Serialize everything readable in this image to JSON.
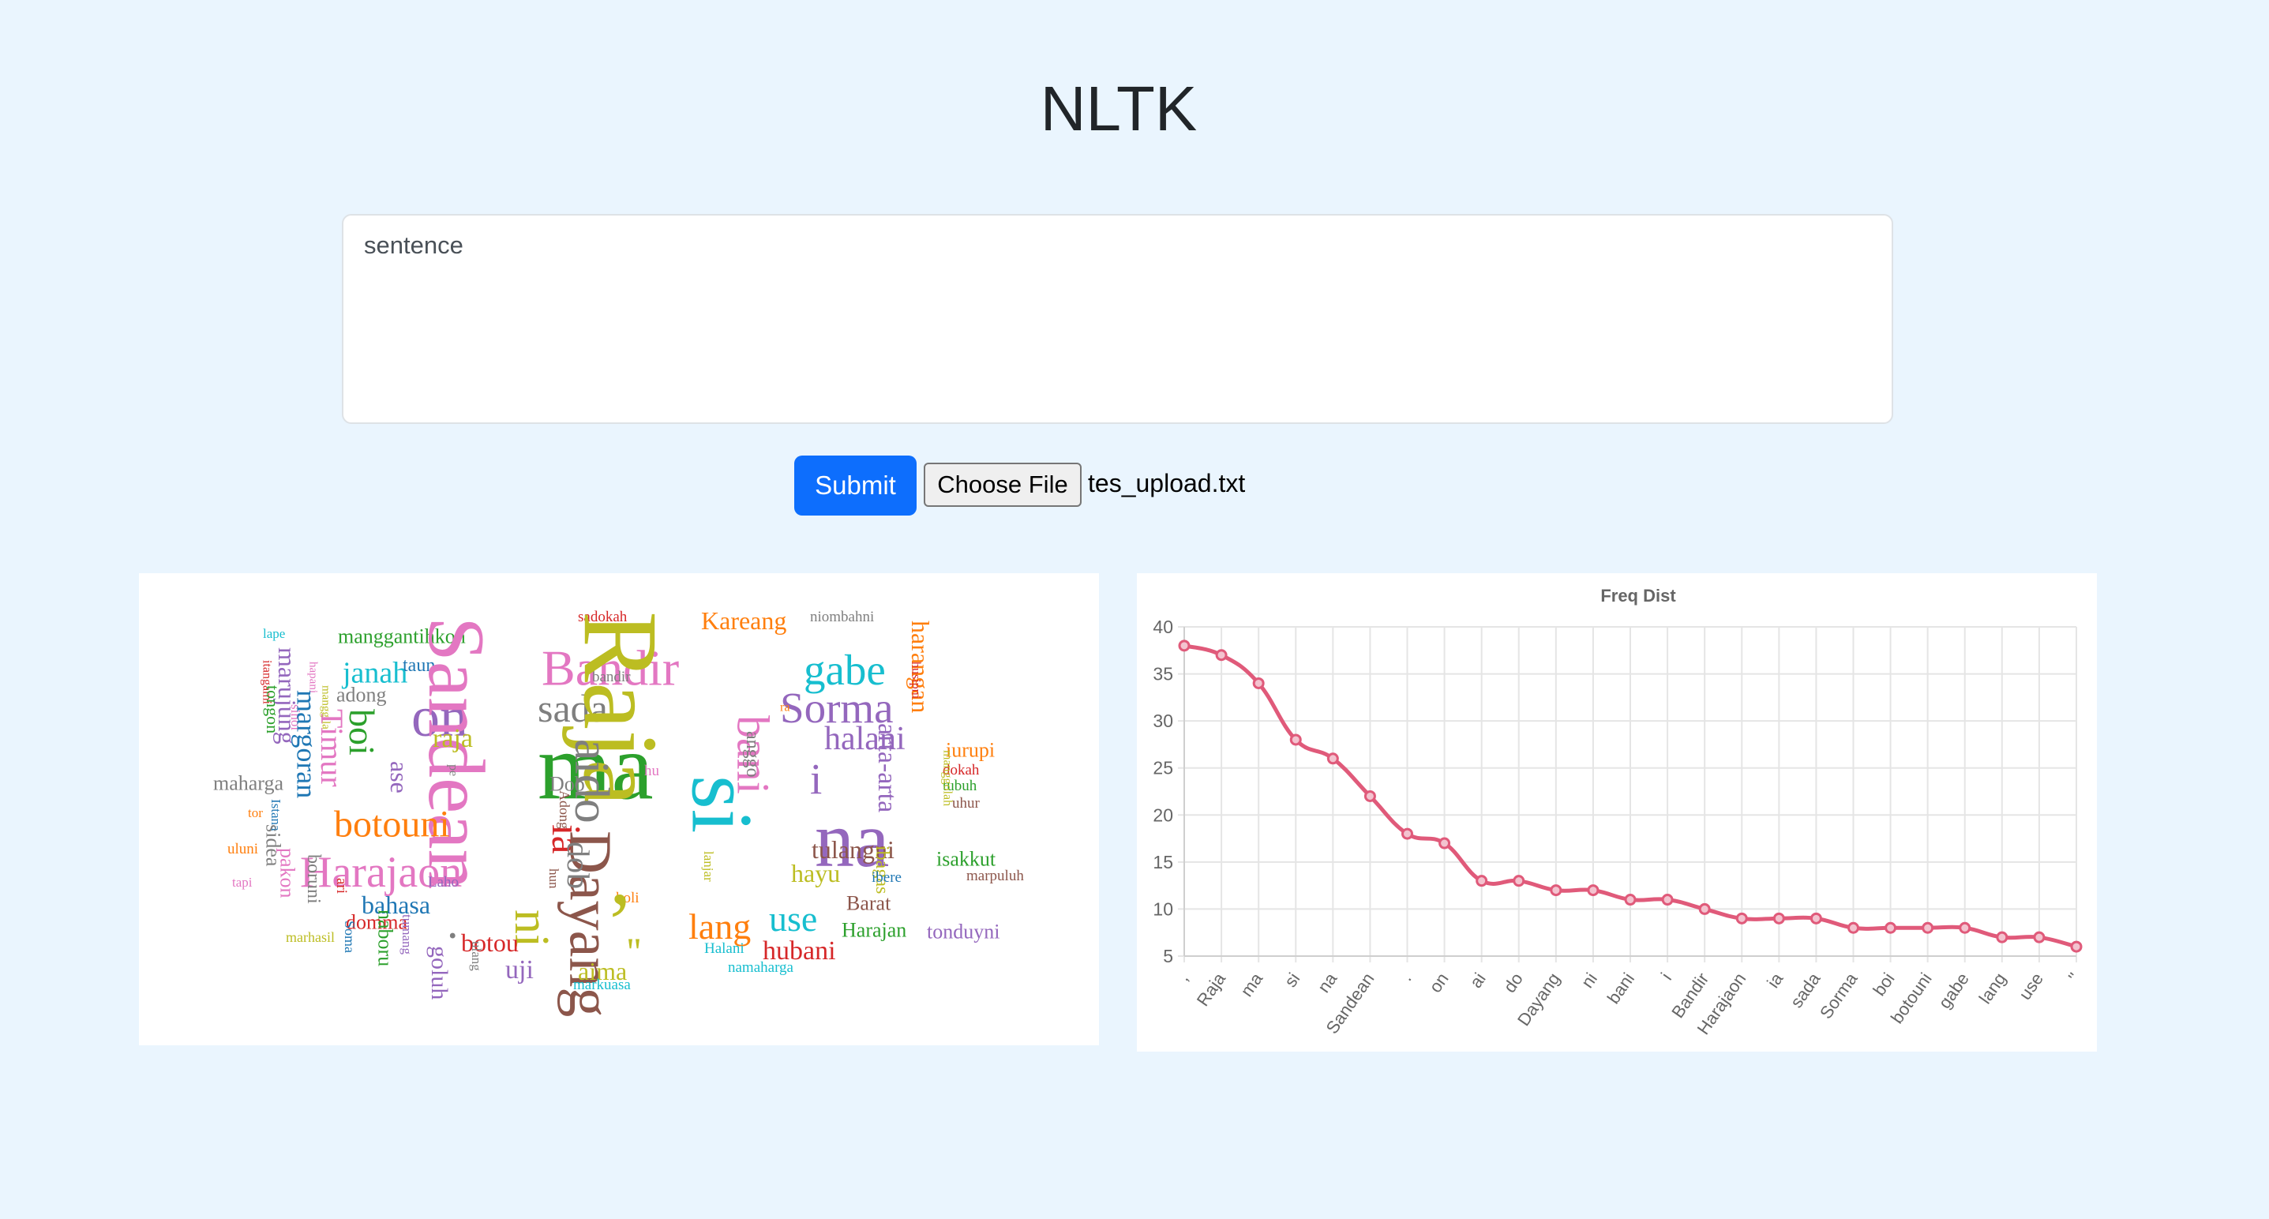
{
  "header": {
    "title": "NLTK"
  },
  "form": {
    "textarea_placeholder": "sentence",
    "submit_label": "Submit",
    "choose_file_label": "Choose File",
    "file_name": "tes_upload.txt"
  },
  "wordcloud": {
    "words": [
      {
        "text": "lape",
        "color": "#17becf"
      },
      {
        "text": "itangami",
        "color": "#d62728"
      },
      {
        "text": "marujung",
        "color": "#9467bd"
      },
      {
        "text": "hapani",
        "color": "#e377c2"
      },
      {
        "text": "manggantihkon",
        "color": "#2ca02c"
      },
      {
        "text": "janah",
        "color": "#17becf"
      },
      {
        "text": "taun",
        "color": "#1f77b4"
      },
      {
        "text": "adong",
        "color": "#7f7f7f"
      },
      {
        "text": "on",
        "color": "#9467bd"
      },
      {
        "text": "Sandean",
        "color": "#e377c2"
      },
      {
        "text": "Bandir",
        "color": "#e377c2"
      },
      {
        "text": "sada",
        "color": "#7f7f7f"
      },
      {
        "text": "bandir",
        "color": "#7f7f7f"
      },
      {
        "text": "ma",
        "color": "#2ca02c"
      },
      {
        "text": "sadokah",
        "color": "#d62728"
      },
      {
        "text": "Kareang",
        "color": "#ff7f0e"
      },
      {
        "text": "niombahni",
        "color": "#7f7f7f"
      },
      {
        "text": "gabe",
        "color": "#17becf"
      },
      {
        "text": "Sorma",
        "color": "#9467bd"
      },
      {
        "text": "halani",
        "color": "#9467bd"
      },
      {
        "text": "harangan",
        "color": "#ff7f0e"
      },
      {
        "text": "husipni",
        "color": "#d62728"
      },
      {
        "text": "Raja",
        "color": "#bcbd22"
      },
      {
        "text": "ra",
        "color": "#ff7f0e"
      },
      {
        "text": "bani",
        "color": "#e377c2"
      },
      {
        "text": "i",
        "color": "#9467bd"
      },
      {
        "text": "na",
        "color": "#9467bd"
      },
      {
        "text": "iurupi",
        "color": "#ff7f0e"
      },
      {
        "text": "dokah",
        "color": "#d62728"
      },
      {
        "text": "tubuh",
        "color": "#2ca02c"
      },
      {
        "text": "uhur",
        "color": "#8c564b"
      },
      {
        "text": "manggolah",
        "color": "#bcbd22"
      },
      {
        "text": "arta-arta",
        "color": "#9467bd"
      },
      {
        "text": "tongon",
        "color": "#2ca02c"
      },
      {
        "text": "sihol",
        "color": "#e377c2"
      },
      {
        "text": "manggila",
        "color": "#bcbd22"
      },
      {
        "text": "Timur",
        "color": "#e377c2"
      },
      {
        "text": "boi",
        "color": "#2ca02c"
      },
      {
        "text": "raja",
        "color": "#bcbd22"
      },
      {
        "text": "maharga",
        "color": "#7f7f7f"
      },
      {
        "text": "margoran",
        "color": "#1f77b4"
      },
      {
        "text": "ase",
        "color": "#9467bd"
      },
      {
        "text": "pe",
        "color": "#7f7f7f"
      },
      {
        "text": "botouni",
        "color": "#ff7f0e"
      },
      {
        "text": "Dob",
        "color": "#7f7f7f"
      },
      {
        "text": "aido",
        "color": "#7f7f7f"
      },
      {
        "text": "hu",
        "color": "#e377c2"
      },
      {
        "text": "anggo",
        "color": "#7f7f7f"
      },
      {
        "text": "si",
        "color": "#17becf"
      },
      {
        "text": "tor",
        "color": "#ff7f0e"
      },
      {
        "text": "Istana",
        "color": "#1f77b4"
      },
      {
        "text": "Harajaon",
        "color": "#e377c2"
      },
      {
        "text": "Adong",
        "color": "#8c564b"
      },
      {
        "text": "ia",
        "color": "#d62728"
      },
      {
        "text": "tulangni",
        "color": "#8c564b"
      },
      {
        "text": "isakkut",
        "color": "#2ca02c"
      },
      {
        "text": "uluni",
        "color": "#ff7f0e"
      },
      {
        "text": "sidea",
        "color": "#7f7f7f"
      },
      {
        "text": "Dayang",
        "color": "#8c564b"
      },
      {
        "text": "hayu",
        "color": "#bcbd22"
      },
      {
        "text": "lanjar",
        "color": "#bcbd22"
      },
      {
        "text": "ibagas",
        "color": "#bcbd22"
      },
      {
        "text": "marpuluh",
        "color": "#8c564b"
      },
      {
        "text": "tapi",
        "color": "#e377c2"
      },
      {
        "text": "pakon",
        "color": "#e377c2"
      },
      {
        "text": "boruni",
        "color": "#7f7f7f"
      },
      {
        "text": "ari",
        "color": "#d62728"
      },
      {
        "text": "Laho",
        "color": "#9467bd"
      },
      {
        "text": "bahasa",
        "color": "#1f77b4"
      },
      {
        "text": "hun",
        "color": "#8c564b"
      },
      {
        "text": "dob",
        "color": "#7f7f7f"
      },
      {
        "text": "ibere",
        "color": "#1f77b4"
      },
      {
        "text": "Barat",
        "color": "#8c564b"
      },
      {
        "text": "holi",
        "color": "#ff7f0e"
      },
      {
        "text": "lang",
        "color": "#ff7f0e"
      },
      {
        "text": "use",
        "color": "#17becf"
      },
      {
        "text": "Harajan",
        "color": "#2ca02c"
      },
      {
        "text": "tonduyni",
        "color": "#9467bd"
      },
      {
        "text": "domma",
        "color": "#d62728"
      },
      {
        "text": "ni",
        "color": "#bcbd22"
      },
      {
        "text": ".",
        "color": "#7f7f7f"
      },
      {
        "text": ",",
        "color": "#bcbd22"
      },
      {
        "text": "''",
        "color": "#bcbd22"
      },
      {
        "text": "marhasil",
        "color": "#bcbd22"
      },
      {
        "text": "Soma",
        "color": "#1f77b4"
      },
      {
        "text": "naboru",
        "color": "#2ca02c"
      },
      {
        "text": "tumang",
        "color": "#9467bd"
      },
      {
        "text": "botou",
        "color": "#d62728"
      },
      {
        "text": "goluh",
        "color": "#9467bd"
      },
      {
        "text": "ulang",
        "color": "#7f7f7f"
      },
      {
        "text": "uji",
        "color": "#9467bd"
      },
      {
        "text": "aima",
        "color": "#bcbd22"
      },
      {
        "text": "Halani",
        "color": "#17becf"
      },
      {
        "text": "hubani",
        "color": "#d62728"
      },
      {
        "text": "namaharga",
        "color": "#17becf"
      },
      {
        "text": "markuasa",
        "color": "#17becf"
      }
    ]
  },
  "chart_data": {
    "type": "line",
    "title": "Freq Dist",
    "categories": [
      ",",
      "Raja",
      "ma",
      "si",
      "na",
      "Sandean",
      ".",
      "on",
      "ai",
      "do",
      "Dayang",
      "ni",
      "bani",
      "i",
      "Bandir",
      "Harajaon",
      "ia",
      "sada",
      "Sorma",
      "boi",
      "botouni",
      "gabe",
      "lang",
      "use",
      "''"
    ],
    "series": [
      {
        "values": [
          38,
          37,
          34,
          28,
          26,
          22,
          18,
          17,
          13,
          13,
          12,
          12,
          11,
          11,
          10,
          9,
          9,
          9,
          8,
          8,
          8,
          8,
          7,
          7,
          6
        ],
        "color": "#e05a7a"
      }
    ],
    "yticks": [
      5,
      10,
      15,
      20,
      25,
      30,
      35,
      40
    ],
    "ylim": [
      5,
      40
    ],
    "grid": true
  }
}
